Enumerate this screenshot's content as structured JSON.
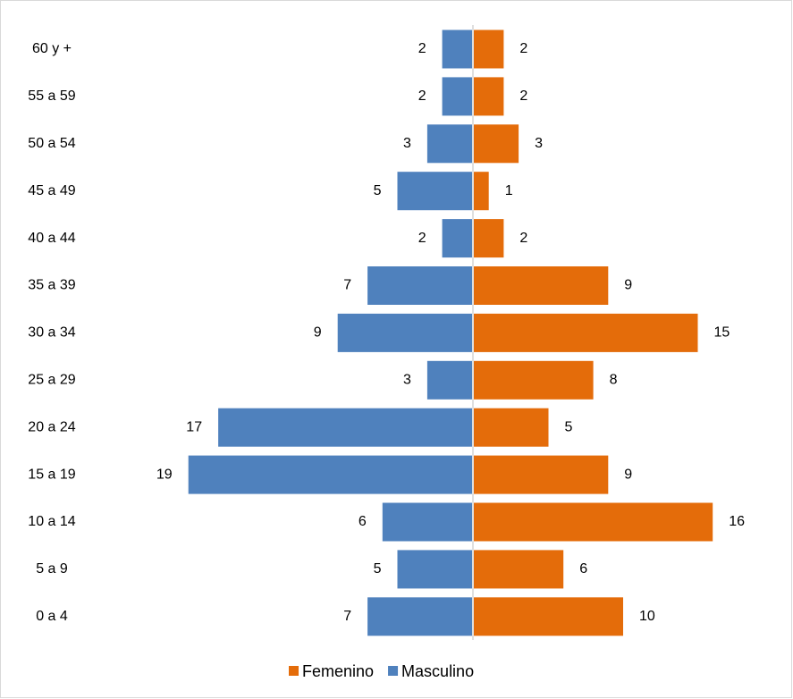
{
  "chart_data": {
    "type": "bar",
    "orientation": "horizontal-diverging",
    "categories": [
      "60 y +",
      "55 a 59",
      "50 a 54",
      "45 a 49",
      "40 a 44",
      "35 a 39",
      "30 a 34",
      "25 a 29",
      "20 a 24",
      "15 a 19",
      "10 a 14",
      "5 a 9",
      "0 a 4"
    ],
    "series": [
      {
        "name": "Femenino",
        "color": "#E46C0A",
        "values": [
          2,
          2,
          3,
          1,
          2,
          9,
          15,
          8,
          5,
          9,
          16,
          6,
          10
        ]
      },
      {
        "name": "Masculino",
        "color": "#4F81BD",
        "values": [
          2,
          2,
          3,
          5,
          2,
          7,
          9,
          3,
          17,
          19,
          6,
          5,
          7
        ]
      }
    ],
    "legend": "bottom"
  }
}
